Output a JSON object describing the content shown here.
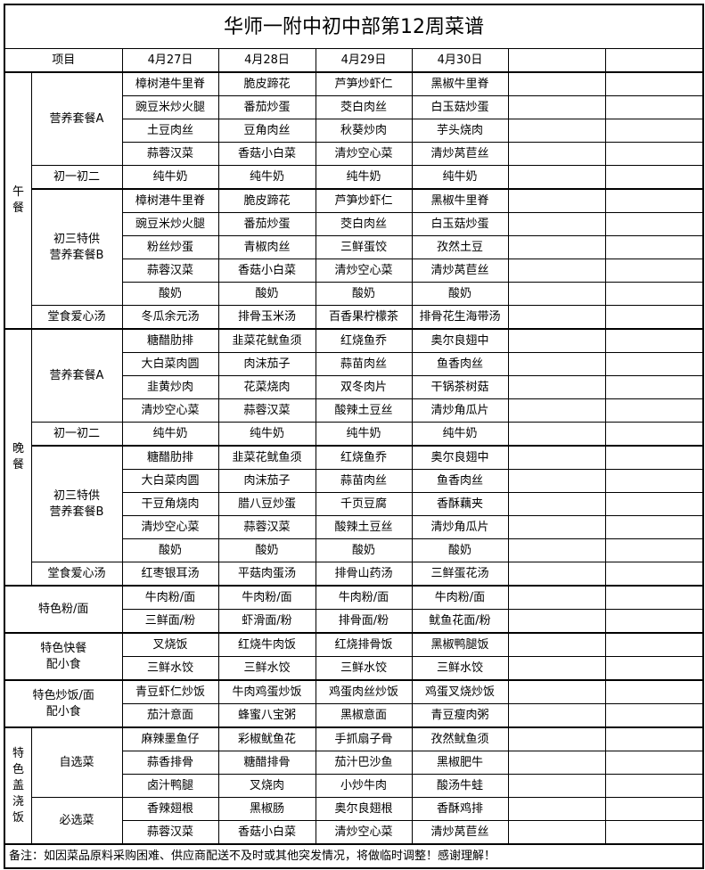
{
  "title": "华师一附中初中部第12周菜谱",
  "header": {
    "item_label": "项目",
    "dates": [
      "4月27日",
      "4月28日",
      "4月29日",
      "4月30日",
      "",
      ""
    ]
  },
  "sections": [
    {
      "meal": "午餐",
      "groups": [
        {
          "label": "营养套餐A",
          "rows": [
            [
              "樟树港牛里脊",
              "脆皮蹄花",
              "芦笋炒虾仁",
              "黑椒牛里脊"
            ],
            [
              "豌豆米炒火腿",
              "番茄炒蛋",
              "茭白肉丝",
              "白玉菇炒蛋"
            ],
            [
              "土豆肉丝",
              "豆角肉丝",
              "秋葵炒肉",
              "芋头烧肉"
            ],
            [
              "蒜蓉汉菜",
              "香菇小白菜",
              "清炒空心菜",
              "清炒莴苣丝"
            ]
          ]
        },
        {
          "label": "初一初二",
          "rows": [
            [
              "纯牛奶",
              "纯牛奶",
              "纯牛奶",
              "纯牛奶"
            ]
          ]
        },
        {
          "label": "初三特供\n营养套餐B",
          "thick": true,
          "rows": [
            [
              "樟树港牛里脊",
              "脆皮蹄花",
              "芦笋炒虾仁",
              "黑椒牛里脊"
            ],
            [
              "豌豆米炒火腿",
              "番茄炒蛋",
              "茭白肉丝",
              "白玉菇炒蛋"
            ],
            [
              "粉丝炒蛋",
              "青椒肉丝",
              "三鲜蛋饺",
              "孜然土豆"
            ],
            [
              "蒜蓉汉菜",
              "香菇小白菜",
              "清炒空心菜",
              "清炒莴苣丝"
            ],
            [
              "酸奶",
              "酸奶",
              "酸奶",
              "酸奶"
            ]
          ]
        },
        {
          "label": "堂食爱心汤",
          "rows": [
            [
              "冬瓜余元汤",
              "排骨玉米汤",
              "百香果柠檬茶",
              "排骨花生海带汤"
            ]
          ]
        }
      ]
    },
    {
      "meal": "晚餐",
      "groups": [
        {
          "label": "营养套餐A",
          "rows": [
            [
              "糖醋肋排",
              "韭菜花鱿鱼须",
              "红烧鱼乔",
              "奥尔良翅中"
            ],
            [
              "大白菜肉圆",
              "肉沫茄子",
              "蒜苗肉丝",
              "鱼香肉丝"
            ],
            [
              "韭黄炒肉",
              "花菜烧肉",
              "双冬肉片",
              "干锅茶树菇"
            ],
            [
              "清炒空心菜",
              "蒜蓉汉菜",
              "酸辣土豆丝",
              "清炒角瓜片"
            ]
          ]
        },
        {
          "label": "初一初二",
          "rows": [
            [
              "纯牛奶",
              "纯牛奶",
              "纯牛奶",
              "纯牛奶"
            ]
          ]
        },
        {
          "label": "初三特供\n营养套餐B",
          "thick": true,
          "rows": [
            [
              "糖醋肋排",
              "韭菜花鱿鱼须",
              "红烧鱼乔",
              "奥尔良翅中"
            ],
            [
              "大白菜肉圆",
              "肉沫茄子",
              "蒜苗肉丝",
              "鱼香肉丝"
            ],
            [
              "干豆角烧肉",
              "腊八豆炒蛋",
              "千页豆腐",
              "香酥藕夹"
            ],
            [
              "清炒空心菜",
              "蒜蓉汉菜",
              "酸辣土豆丝",
              "清炒角瓜片"
            ],
            [
              "酸奶",
              "酸奶",
              "酸奶",
              "酸奶"
            ]
          ]
        },
        {
          "label": "堂食爱心汤",
          "rows": [
            [
              "红枣银耳汤",
              "平菇肉蛋汤",
              "排骨山药汤",
              "三鲜蛋花汤"
            ]
          ]
        }
      ]
    },
    {
      "meal": "",
      "groups": [
        {
          "label": "特色粉/面",
          "rows": [
            [
              "牛肉粉/面",
              "牛肉粉/面",
              "牛肉粉/面",
              "牛肉粉/面"
            ],
            [
              "三鲜面/粉",
              "虾滑面/粉",
              "排骨面/粉",
              "鱿鱼花面/粉"
            ]
          ]
        }
      ]
    },
    {
      "meal": "",
      "groups": [
        {
          "label": "特色快餐\n配小食",
          "rows": [
            [
              "叉烧饭",
              "红烧牛肉饭",
              "红烧排骨饭",
              "黑椒鸭腿饭"
            ],
            [
              "三鲜水饺",
              "三鲜水饺",
              "三鲜水饺",
              "三鲜水饺"
            ]
          ]
        }
      ]
    },
    {
      "meal": "",
      "groups": [
        {
          "label": "特色炒饭/面\n配小食",
          "rows": [
            [
              "青豆虾仁炒饭",
              "牛肉鸡蛋炒饭",
              "鸡蛋肉丝炒饭",
              "鸡蛋叉烧炒饭"
            ],
            [
              "茄汁意面",
              "蜂蜜八宝粥",
              "黑椒意面",
              "青豆瘦肉粥"
            ]
          ]
        }
      ]
    },
    {
      "meal": "特色盖浇饭",
      "groups": [
        {
          "label": "自选菜",
          "rows": [
            [
              "麻辣墨鱼仔",
              "彩椒鱿鱼花",
              "手抓扇子骨",
              "孜然鱿鱼须"
            ],
            [
              "蒜香排骨",
              "糖醋排骨",
              "茄汁巴沙鱼",
              "黑椒肥牛"
            ],
            [
              "卤汁鸭腿",
              "叉烧肉",
              "小炒牛肉",
              "酸汤牛蛙"
            ]
          ]
        },
        {
          "label": "必选菜",
          "rows": [
            [
              "香辣翅根",
              "黑椒肠",
              "奥尔良翅根",
              "香酥鸡排"
            ],
            [
              "蒜蓉汉菜",
              "香菇小白菜",
              "清炒空心菜",
              "清炒莴苣丝"
            ]
          ]
        }
      ]
    }
  ],
  "note": "备注：如因菜品原料采购困难、供应商配送不及时或其他突发情况，将做临时调整！感谢理解！"
}
